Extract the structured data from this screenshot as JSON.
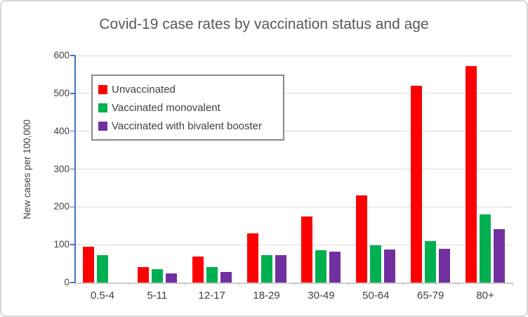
{
  "chart_data": {
    "type": "bar",
    "title": "Covid-19 case rates by vaccination status and age",
    "xlabel": "",
    "ylabel": "New cases per 100,000",
    "ylim": [
      0,
      600
    ],
    "yticks": [
      0,
      100,
      200,
      300,
      400,
      500,
      600
    ],
    "grid": true,
    "legend_position": "upper-left-inside",
    "categories": [
      "0.5-4",
      "5-11",
      "12-17",
      "18-29",
      "30-49",
      "50-64",
      "65-79",
      "80+"
    ],
    "series": [
      {
        "name": "Unvaccinated",
        "color": "#FF0000",
        "values": [
          95,
          40,
          68,
          130,
          175,
          230,
          520,
          572
        ]
      },
      {
        "name": "Vaccinated monovalent",
        "color": "#00B050",
        "values": [
          72,
          35,
          40,
          73,
          86,
          99,
          110,
          180
        ]
      },
      {
        "name": "Vaccinated with bivalent booster",
        "color": "#7030A0",
        "values": [
          null,
          24,
          27,
          73,
          82,
          87,
          90,
          142
        ]
      }
    ]
  },
  "style": {
    "axis_line_color": "#4472C4",
    "gridline_color": "#D9D9D9",
    "x_axis_color": "#C9C9C9",
    "title_color": "#595959",
    "tick_label_color": "#404040",
    "legend_border_color": "#898989",
    "background": "#FFFFFF"
  }
}
